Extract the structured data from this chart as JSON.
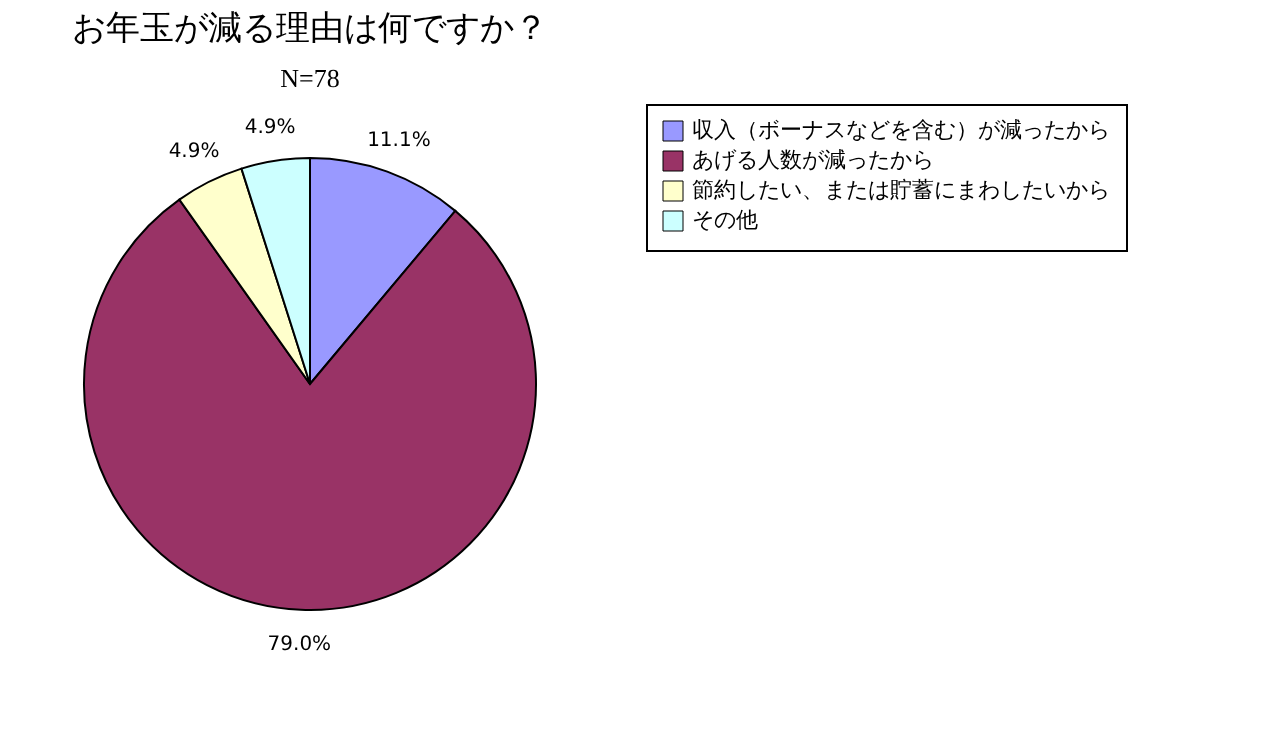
{
  "chart_data": {
    "type": "pie",
    "title": "お年玉が減る理由は何ですか？",
    "subtitle": "N=78",
    "categories": [
      "収入（ボーナスなどを含む）が減ったから",
      "あげる人数が減ったから",
      "節約したい、または貯蓄にまわしたいから",
      "その他"
    ],
    "values": [
      11.1,
      79.0,
      4.9,
      4.9
    ],
    "value_labels": [
      "11.1%",
      "79.0%",
      "4.9%",
      "4.9%"
    ],
    "colors": [
      "#9999ff",
      "#993366",
      "#ffffcc",
      "#ccffff"
    ],
    "legend": "right"
  }
}
